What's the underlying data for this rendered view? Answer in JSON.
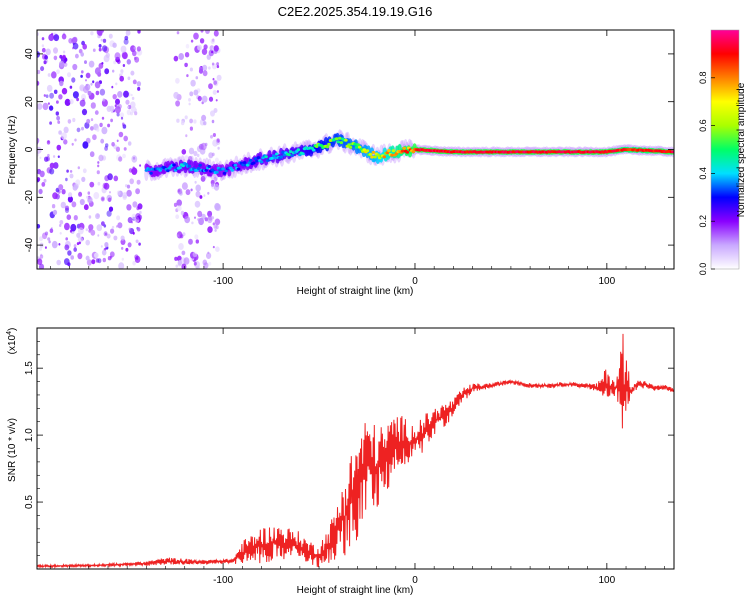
{
  "chart_data": [
    {
      "type": "heatmap",
      "title": "C2E2.2025.354.19.19.G16",
      "xlabel": "Height of straight line (km)",
      "ylabel": "Frequency (Hz)",
      "xlim": [
        -197,
        135
      ],
      "ylim": [
        -50,
        50
      ],
      "x_ticks": [
        -100,
        0,
        100
      ],
      "x_tick_labels": [
        "-100",
        "0",
        "100"
      ],
      "y_ticks": [
        -40,
        -20,
        0,
        20,
        40
      ],
      "y_tick_labels": [
        "-40",
        "-20",
        "0",
        "20",
        "40"
      ],
      "colorbar": {
        "label": "Normalized spectral amplitude",
        "range": [
          0,
          1
        ],
        "ticks": [
          0.0,
          0.2,
          0.4,
          0.6,
          0.8
        ],
        "tick_labels": [
          "0.0",
          "0.2",
          "0.4",
          "0.6",
          "0.8"
        ],
        "colors": [
          "#ffffff",
          "#c9a8ff",
          "#8a00ff",
          "#0000ff",
          "#00e0ff",
          "#00ff66",
          "#aaff00",
          "#ffff00",
          "#ff8000",
          "#ff0000",
          "#ff0099"
        ]
      },
      "ridge": {
        "x": [
          -140,
          -120,
          -100,
          -80,
          -60,
          -50,
          -40,
          -30,
          -20,
          -10,
          0,
          20,
          50,
          80,
          100,
          110,
          135
        ],
        "freq": [
          -9,
          -7,
          -9,
          -4,
          -1,
          1,
          4,
          1,
          -3,
          -1,
          0,
          -1,
          -1,
          -1,
          -1,
          0,
          -1
        ],
        "amplitude": [
          0.35,
          0.4,
          0.35,
          0.4,
          0.45,
          0.55,
          0.6,
          0.65,
          0.7,
          0.85,
          0.95,
          0.95,
          0.95,
          0.95,
          0.95,
          0.9,
          0.95
        ]
      },
      "noise_regions": [
        {
          "x": [
            -197,
            -143
          ],
          "freq": [
            -50,
            50
          ],
          "amplitude": 0.25
        },
        {
          "x": [
            -125,
            -102
          ],
          "freq": [
            -50,
            50
          ],
          "amplitude": 0.2
        }
      ]
    },
    {
      "type": "line",
      "xlabel": "Height of straight line (km)",
      "ylabel": "SNR (10 * v/v)",
      "multiplier_label": "(x10",
      "multiplier_exponent": "4",
      "multiplier_close": ")",
      "xlim": [
        -197,
        135
      ],
      "ylim": [
        0,
        1.8
      ],
      "x_ticks": [
        -100,
        0,
        100
      ],
      "x_tick_labels": [
        "-100",
        "0",
        "100"
      ],
      "y_ticks": [
        0.5,
        1.0,
        1.5
      ],
      "y_tick_labels": [
        "0.5",
        "1.0",
        "1.5"
      ],
      "series": [
        {
          "name": "SNR",
          "color": "#ee2222",
          "x": [
            -197,
            -160,
            -140,
            -130,
            -110,
            -95,
            -90,
            -80,
            -70,
            -60,
            -55,
            -50,
            -45,
            -40,
            -35,
            -30,
            -25,
            -20,
            -15,
            -10,
            -5,
            0,
            5,
            10,
            15,
            20,
            25,
            30,
            40,
            50,
            60,
            70,
            80,
            90,
            95,
            100,
            105,
            108,
            110,
            112,
            115,
            120,
            125,
            130,
            135
          ],
          "y": [
            0.02,
            0.03,
            0.04,
            0.06,
            0.05,
            0.06,
            0.12,
            0.18,
            0.2,
            0.17,
            0.12,
            0.1,
            0.18,
            0.3,
            0.45,
            0.6,
            0.8,
            0.75,
            0.82,
            0.95,
            0.95,
            0.95,
            1.02,
            1.1,
            1.15,
            1.2,
            1.3,
            1.35,
            1.37,
            1.4,
            1.37,
            1.37,
            1.38,
            1.37,
            1.35,
            1.38,
            1.35,
            1.4,
            1.35,
            1.33,
            1.37,
            1.38,
            1.35,
            1.36,
            1.33
          ],
          "noise": [
            0.01,
            0.01,
            0.02,
            0.03,
            0.02,
            0.02,
            0.1,
            0.15,
            0.15,
            0.12,
            0.1,
            0.1,
            0.15,
            0.25,
            0.4,
            0.45,
            0.4,
            0.35,
            0.3,
            0.25,
            0.2,
            0.15,
            0.15,
            0.12,
            0.1,
            0.08,
            0.06,
            0.04,
            0.02,
            0.02,
            0.02,
            0.02,
            0.02,
            0.02,
            0.04,
            0.15,
            0.05,
            0.45,
            0.35,
            0.1,
            0.05,
            0.03,
            0.02,
            0.02,
            0.02
          ]
        }
      ]
    }
  ]
}
